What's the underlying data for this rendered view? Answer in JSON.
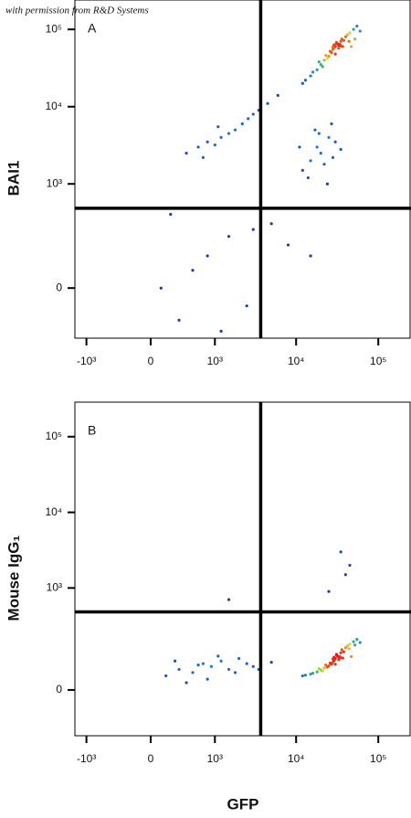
{
  "watermark": "with permission from R&D Systems",
  "chart_data": [
    {
      "type": "scatter",
      "panel_label": "A",
      "ylabel": "BAI1",
      "xscale": "biexponential",
      "yscale": "biexponential",
      "xlim": [
        -1400,
        250000
      ],
      "ylim": [
        -190,
        240000
      ],
      "xticks": [
        {
          "value": -1000,
          "label": "-10³"
        },
        0,
        {
          "value": 1000,
          "label": "10³"
        },
        {
          "value": 10000,
          "label": "10⁴"
        },
        {
          "value": 100000,
          "label": "10⁵"
        }
      ],
      "yticks": [
        0,
        {
          "value": 1000,
          "label": "10³"
        },
        {
          "value": 10000,
          "label": "10⁴"
        },
        {
          "value": 100000,
          "label": "10⁵"
        }
      ],
      "gates": {
        "x": 3700,
        "y": 480
      },
      "points": {
        "x": [
          30000,
          32000,
          28000,
          35000,
          33000,
          29000,
          31000,
          36000,
          27000,
          34000,
          25000,
          40000,
          22000,
          45000,
          20000,
          50000,
          18000,
          38000,
          26000,
          42000,
          15000,
          55000,
          12000,
          60000,
          24000,
          30000,
          37000,
          21000,
          44000,
          16000,
          33000,
          29000,
          31000,
          28000,
          35000,
          47000,
          13000,
          19000,
          52000,
          23000,
          400,
          600,
          800,
          1000,
          1200,
          1500,
          1800,
          2200,
          2600,
          3000,
          3500,
          4500,
          6000,
          700,
          1100,
          12000,
          15000,
          18000,
          20000,
          25000,
          30000,
          14000,
          22000,
          28000,
          17000,
          35000,
          11000,
          24000,
          19000,
          27000,
          100,
          300,
          800,
          1500,
          2500,
          5000,
          8000,
          500,
          1200,
          3000,
          200,
          15000
        ],
        "y": [
          60000,
          65000,
          55000,
          70000,
          62000,
          58000,
          68000,
          75000,
          50000,
          64000,
          45000,
          80000,
          40000,
          90000,
          35000,
          100000,
          30000,
          72000,
          52000,
          85000,
          25000,
          110000,
          20000,
          95000,
          42000,
          48000,
          60000,
          33000,
          70000,
          28000,
          57000,
          63000,
          66000,
          59000,
          61000,
          60000,
          22000,
          38000,
          75000,
          46000,
          2500,
          3000,
          3500,
          3200,
          4000,
          4500,
          5000,
          6000,
          7000,
          8000,
          9000,
          11000,
          14000,
          2200,
          5500,
          1500,
          2000,
          3000,
          2500,
          4000,
          3500,
          1200,
          1800,
          2200,
          5000,
          2800,
          3000,
          1000,
          4500,
          6000,
          0,
          -100,
          100,
          200,
          -50,
          300,
          150,
          50,
          -150,
          250,
          400,
          100
        ]
      }
    },
    {
      "type": "scatter",
      "panel_label": "B",
      "ylabel": "Mouse IgG₁",
      "xlabel": "GFP",
      "xscale": "biexponential",
      "yscale": "biexponential",
      "xlim": [
        -1400,
        250000
      ],
      "ylim": [
        -170,
        286000
      ],
      "xticks": [
        {
          "value": -1000,
          "label": "-10³"
        },
        0,
        {
          "value": 1000,
          "label": "10³"
        },
        {
          "value": 10000,
          "label": "10⁴"
        },
        {
          "value": 100000,
          "label": "10⁵"
        }
      ],
      "yticks": [
        0,
        {
          "value": 1000,
          "label": "10³"
        },
        {
          "value": 10000,
          "label": "10⁴"
        },
        {
          "value": 100000,
          "label": "10⁵"
        }
      ],
      "gates": {
        "x": 3700,
        "y": 480
      },
      "points": {
        "x": [
          30000,
          32000,
          28000,
          35000,
          33000,
          29000,
          31000,
          36000,
          27000,
          34000,
          25000,
          40000,
          22000,
          45000,
          20000,
          50000,
          18000,
          38000,
          26000,
          42000,
          15000,
          55000,
          12000,
          60000,
          24000,
          30000,
          37000,
          21000,
          44000,
          16000,
          33000,
          29000,
          31000,
          28000,
          35000,
          47000,
          13000,
          19000,
          52000,
          23000,
          150,
          300,
          500,
          700,
          900,
          1200,
          1500,
          2000,
          2500,
          3000,
          400,
          800,
          1100,
          1800,
          250,
          600,
          3500,
          5000,
          25000,
          40000,
          35000,
          1500,
          45000
        ],
        "y": [
          100,
          110,
          85,
          125,
          105,
          92,
          118,
          140,
          78,
          108,
          72,
          150,
          65,
          170,
          58,
          185,
          52,
          130,
          82,
          160,
          45,
          200,
          40,
          180,
          68,
          78,
          102,
          55,
          145,
          48,
          95,
          105,
          115,
          98,
          103,
          108,
          42,
          62,
          165,
          75,
          40,
          60,
          50,
          80,
          70,
          90,
          60,
          100,
          80,
          70,
          20,
          30,
          110,
          50,
          90,
          75,
          60,
          85,
          900,
          1500,
          3000,
          700,
          2000
        ]
      }
    }
  ]
}
